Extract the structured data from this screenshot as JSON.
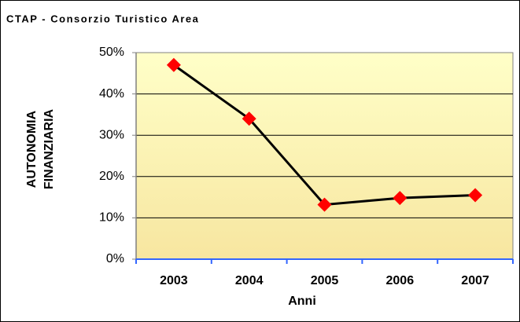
{
  "chart_data": {
    "type": "line",
    "title": "CTAP - Consorzio Turistico Area",
    "x_label": "Anni",
    "y_label": [
      "AUTONOMIA",
      "FINANZIARIA"
    ],
    "categories": [
      "2003",
      "2004",
      "2005",
      "2006",
      "2007"
    ],
    "series": [
      {
        "name": "AUTONOMIA FINANZIARIA",
        "color": "#000000",
        "marker_color": "#ff0000",
        "values": [
          47,
          34,
          13.2,
          14.8,
          15.5
        ]
      }
    ],
    "ylim": [
      0,
      50
    ],
    "yticks": [
      {
        "value": 0,
        "label": "0%"
      },
      {
        "value": 10,
        "label": "10%"
      },
      {
        "value": 20,
        "label": "20%"
      },
      {
        "value": 30,
        "label": "30%"
      },
      {
        "value": 40,
        "label": "40%"
      },
      {
        "value": 50,
        "label": "50%"
      }
    ],
    "grid": true
  }
}
